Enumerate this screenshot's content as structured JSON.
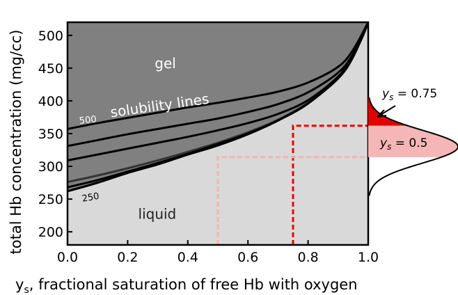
{
  "chart_data": {
    "type": "line",
    "xlabel": "y",
    "xlabel_sub": "s",
    "xlabel_rest": ", fractional saturation of free Hb with oxygen",
    "ylabel": "total Hb concentration (mg/cc)",
    "xlim": [
      0,
      1
    ],
    "ylim": [
      180,
      520
    ],
    "x_ticks": [
      "0.0",
      "0.2",
      "0.4",
      "0.6",
      "0.8",
      "1.0"
    ],
    "y_ticks": [
      "200",
      "250",
      "300",
      "350",
      "400",
      "450",
      "500"
    ],
    "regions": {
      "gel": "gel",
      "liquid": "liquid"
    },
    "colors": {
      "gel": "#808080",
      "liquid": "#d9d9d9",
      "dashed_high": "#ee0000",
      "dashed_low": "#f4b4b4",
      "dist_high_fill": "#e00000",
      "dist_low_fill": "#f4b6b6"
    },
    "phase_boundary": {
      "x": [
        0.0,
        0.1,
        0.2,
        0.3,
        0.4,
        0.5,
        0.6,
        0.7,
        0.8,
        0.9,
        0.95,
        0.98,
        1.0
      ],
      "y": [
        262,
        275,
        290,
        303,
        318,
        332,
        349,
        370,
        396,
        436,
        470,
        497,
        520
      ]
    },
    "solubility_lines": {
      "title": "solubility lines",
      "top_label": "500",
      "bottom_label": "250",
      "series": [
        {
          "x": [
            0.0,
            0.1,
            0.2,
            0.3,
            0.4,
            0.5,
            0.6,
            0.7,
            0.8,
            0.9,
            0.95,
            1.0
          ],
          "y": [
            357,
            366,
            374,
            382,
            390,
            397,
            405,
            414,
            428,
            452,
            478,
            520
          ]
        },
        {
          "x": [
            0.0,
            0.1,
            0.2,
            0.3,
            0.4,
            0.5,
            0.6,
            0.7,
            0.8,
            0.9,
            0.95,
            1.0
          ],
          "y": [
            331,
            340,
            349,
            357,
            365,
            373,
            383,
            395,
            413,
            443,
            472,
            520
          ]
        },
        {
          "x": [
            0.0,
            0.1,
            0.2,
            0.3,
            0.4,
            0.5,
            0.6,
            0.7,
            0.8,
            0.9,
            0.95,
            1.0
          ],
          "y": [
            309,
            318,
            327,
            336,
            345,
            355,
            366,
            380,
            401,
            437,
            468,
            520
          ]
        },
        {
          "x": [
            0.0,
            0.1,
            0.2,
            0.3,
            0.4,
            0.5,
            0.6,
            0.7,
            0.8,
            0.9,
            0.95,
            1.0
          ],
          "y": [
            276,
            286,
            297,
            309,
            322,
            336,
            352,
            371,
            397,
            434,
            467,
            520
          ]
        },
        {
          "x": [
            0.0,
            0.1,
            0.2,
            0.3,
            0.4,
            0.5,
            0.6,
            0.7,
            0.8,
            0.9,
            0.95,
            1.0
          ],
          "y": [
            268,
            279,
            292,
            305,
            319,
            334,
            350,
            370,
            396,
            435,
            468,
            520
          ]
        }
      ]
    },
    "guide_lines": [
      {
        "ys": 0.75,
        "hb": 362,
        "style": "dashed",
        "color": "#ee0000"
      },
      {
        "ys": 0.5,
        "hb": 314,
        "style": "dashed",
        "color": "#f4b4b4"
      }
    ],
    "distribution": {
      "mean": 330,
      "sd": 25,
      "annotations": [
        {
          "prefix": "y",
          "sub": "s",
          "text": " = 0.75"
        },
        {
          "prefix": "y",
          "sub": "s",
          "text": " = 0.5"
        }
      ]
    }
  }
}
